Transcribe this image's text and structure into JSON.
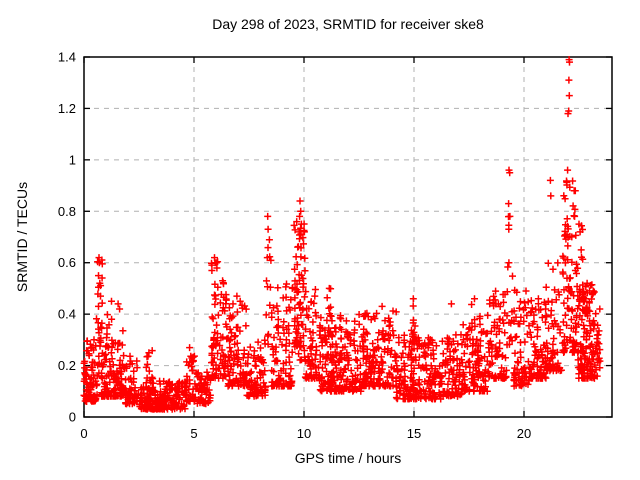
{
  "title": "Day 298 of 2023, SRMTID for receiver ske8",
  "xlabel": "GPS time / hours",
  "ylabel": "SRMTID / TECUs",
  "colors": {
    "marker": "#ff0000",
    "grid": "#b0b0b0",
    "frame": "#000000",
    "background": "#ffffff"
  },
  "chart_data": {
    "type": "scatter",
    "title": "Day 298 of 2023, SRMTID for receiver ske8",
    "xlabel": "GPS time / hours",
    "ylabel": "SRMTID / TECUs",
    "xlim": [
      0,
      24
    ],
    "ylim": [
      0,
      1.4
    ],
    "xticks": [
      0,
      5,
      10,
      15,
      20
    ],
    "xtick_labels": [
      "0",
      "5",
      "10",
      "15",
      "20"
    ],
    "yticks": [
      0,
      0.2,
      0.4,
      0.6,
      0.8,
      1.0,
      1.2,
      1.4
    ],
    "ytick_labels": [
      "0",
      "0.2",
      "0.4",
      "0.6",
      "0.8",
      "1",
      "1.2",
      "1.4"
    ],
    "grid": true,
    "grid_style": "dashed",
    "legend": "none",
    "series_name": "SRMTID",
    "marker": "plus",
    "marker_color": "#ff0000",
    "time_span_hours": [
      0,
      23.45
    ],
    "seed": 298,
    "clusters_format": "[t_start_hr, t_end_hr, n_points, v_min_TECU, v_max_TECU, skew_power] — values drawn as v_min+(v_max-v_min)*rand^skew (bottom-heavy columns)",
    "clusters": [
      [
        0.0,
        0.6,
        80,
        0.06,
        0.32,
        2.0
      ],
      [
        0.55,
        0.85,
        30,
        0.15,
        0.62,
        1.5
      ],
      [
        0.8,
        1.8,
        120,
        0.08,
        0.4,
        2.2
      ],
      [
        1.8,
        2.5,
        60,
        0.05,
        0.24,
        1.8
      ],
      [
        2.5,
        3.3,
        80,
        0.03,
        0.12,
        1.5
      ],
      [
        2.8,
        3.2,
        16,
        0.1,
        0.26,
        1.3
      ],
      [
        3.3,
        4.6,
        110,
        0.03,
        0.14,
        1.5
      ],
      [
        4.6,
        5.1,
        45,
        0.06,
        0.24,
        1.7
      ],
      [
        5.1,
        5.75,
        50,
        0.05,
        0.18,
        1.5
      ],
      [
        5.78,
        6.12,
        45,
        0.15,
        0.62,
        1.4
      ],
      [
        6.12,
        6.5,
        35,
        0.15,
        0.53,
        1.6
      ],
      [
        6.5,
        7.4,
        85,
        0.12,
        0.44,
        2.0
      ],
      [
        7.4,
        8.25,
        75,
        0.08,
        0.3,
        1.9
      ],
      [
        8.28,
        8.52,
        12,
        0.25,
        0.72,
        1.2
      ],
      [
        8.5,
        9.5,
        95,
        0.12,
        0.52,
        2.1
      ],
      [
        9.55,
        10.05,
        75,
        0.22,
        0.82,
        1.7
      ],
      [
        10.05,
        10.6,
        55,
        0.15,
        0.5,
        1.9
      ],
      [
        10.6,
        12.6,
        200,
        0.1,
        0.4,
        2.2
      ],
      [
        11.0,
        11.35,
        18,
        0.22,
        0.5,
        1.4
      ],
      [
        12.6,
        14.2,
        160,
        0.12,
        0.42,
        2.2
      ],
      [
        14.2,
        16.3,
        200,
        0.07,
        0.32,
        2.0
      ],
      [
        14.85,
        15.1,
        14,
        0.22,
        0.46,
        1.4
      ],
      [
        16.3,
        17.2,
        85,
        0.08,
        0.32,
        1.9
      ],
      [
        17.2,
        18.4,
        100,
        0.1,
        0.4,
        2.0
      ],
      [
        17.6,
        18.05,
        16,
        0.25,
        0.46,
        1.4
      ],
      [
        18.4,
        19.2,
        75,
        0.15,
        0.5,
        1.9
      ],
      [
        19.22,
        19.48,
        18,
        0.28,
        0.8,
        1.4
      ],
      [
        19.5,
        20.3,
        70,
        0.12,
        0.5,
        2.0
      ],
      [
        20.3,
        21.0,
        70,
        0.15,
        0.46,
        1.9
      ],
      [
        21.0,
        21.7,
        60,
        0.18,
        0.6,
        1.8
      ],
      [
        21.75,
        22.45,
        95,
        0.25,
        0.92,
        1.9
      ],
      [
        22.45,
        23.2,
        115,
        0.15,
        0.52,
        1.7
      ],
      [
        22.5,
        22.75,
        12,
        0.45,
        0.75,
        1.3
      ],
      [
        23.2,
        23.45,
        25,
        0.15,
        0.42,
        1.5
      ]
    ],
    "outliers_format": "[t_hr, v_TECU] explicit notable points read from the figure",
    "outliers": [
      [
        0.68,
        0.62
      ],
      [
        0.7,
        0.6
      ],
      [
        0.66,
        0.55
      ],
      [
        0.72,
        0.52
      ],
      [
        0.75,
        0.47
      ],
      [
        1.25,
        0.45
      ],
      [
        1.55,
        0.44
      ],
      [
        1.62,
        0.42
      ],
      [
        2.95,
        0.25
      ],
      [
        4.8,
        0.27
      ],
      [
        5.93,
        0.62
      ],
      [
        5.97,
        0.6
      ],
      [
        6.02,
        0.6
      ],
      [
        6.3,
        0.53
      ],
      [
        6.95,
        0.47
      ],
      [
        7.1,
        0.45
      ],
      [
        8.35,
        0.78
      ],
      [
        8.37,
        0.73
      ],
      [
        8.33,
        0.62
      ],
      [
        9.82,
        0.84
      ],
      [
        9.85,
        0.8
      ],
      [
        9.8,
        0.78
      ],
      [
        9.88,
        0.75
      ],
      [
        9.78,
        0.72
      ],
      [
        11.15,
        0.5
      ],
      [
        13.55,
        0.43
      ],
      [
        14.97,
        0.46
      ],
      [
        16.7,
        0.44
      ],
      [
        17.75,
        0.46
      ],
      [
        19.32,
        0.96
      ],
      [
        19.35,
        0.95
      ],
      [
        19.3,
        0.83
      ],
      [
        19.36,
        0.78
      ],
      [
        21.2,
        0.92
      ],
      [
        21.22,
        0.86
      ],
      [
        21.98,
        0.96
      ],
      [
        22.0,
        1.18
      ],
      [
        22.03,
        1.19
      ],
      [
        22.05,
        1.39
      ],
      [
        22.07,
        1.38
      ],
      [
        22.04,
        1.31
      ],
      [
        22.06,
        1.25
      ],
      [
        22.28,
        0.88
      ],
      [
        22.33,
        0.88
      ],
      [
        22.3,
        0.78
      ],
      [
        22.5,
        0.75
      ],
      [
        22.55,
        0.72
      ],
      [
        22.6,
        0.65
      ]
    ]
  }
}
